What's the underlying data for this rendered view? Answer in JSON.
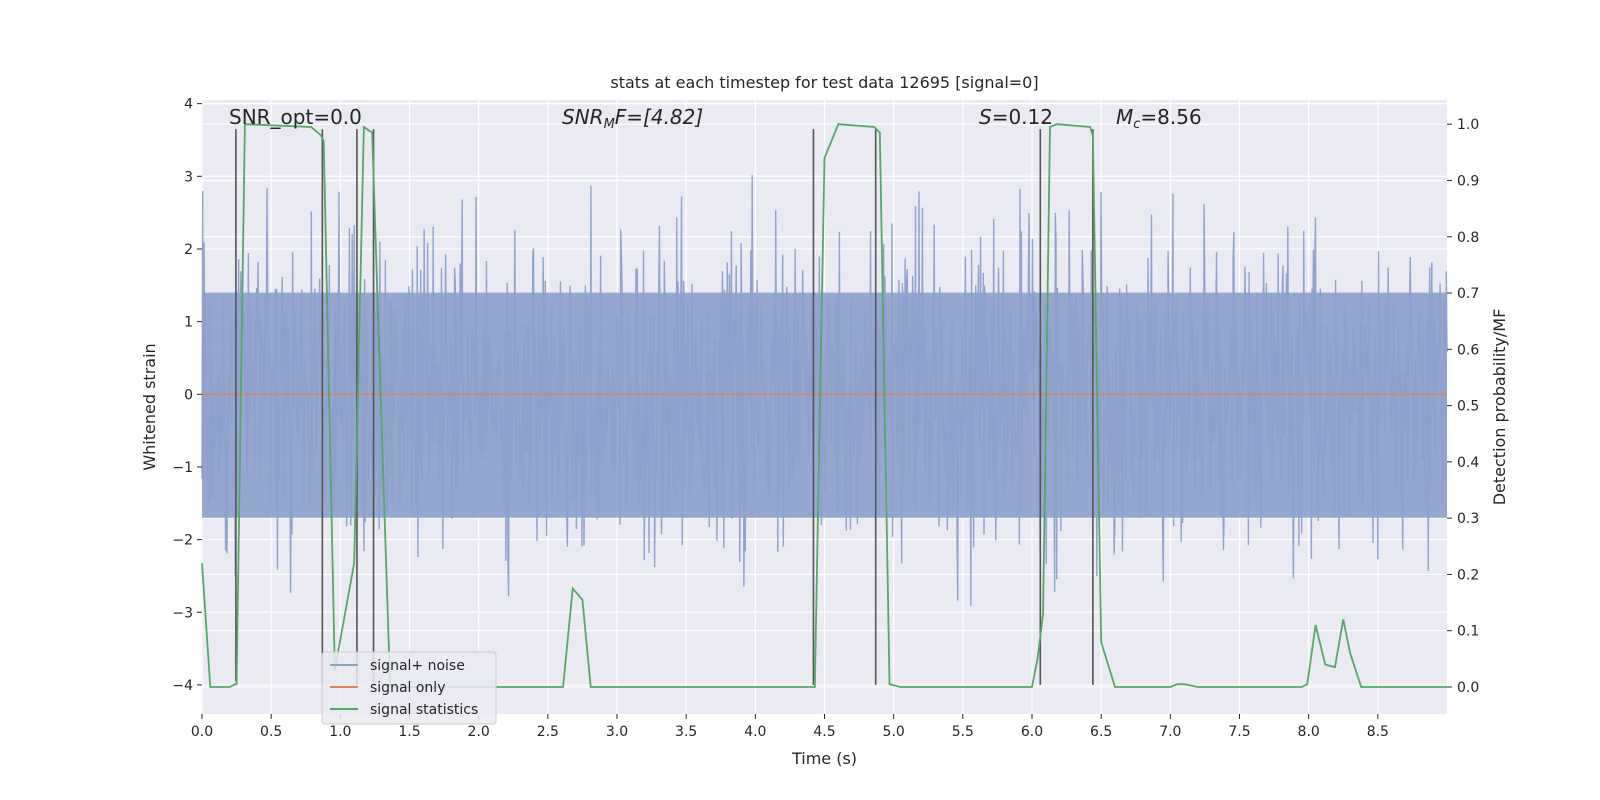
{
  "chart_data": {
    "type": "line",
    "title": "stats at each timestep for test data 12695 [signal=0]",
    "xlabel": "Time (s)",
    "ylabel": "Whitened strain",
    "y2label": "Detection probability/MF",
    "xlim": [
      0.0,
      9.0
    ],
    "ylim": [
      -4.4,
      4.05
    ],
    "y2lim": [
      -0.048,
      1.043
    ],
    "xticks": [
      0.0,
      0.5,
      1.0,
      1.5,
      2.0,
      2.5,
      3.0,
      3.5,
      4.0,
      4.5,
      5.0,
      5.5,
      6.0,
      6.5,
      7.0,
      7.5,
      8.0,
      8.5
    ],
    "xtick_labels": [
      "0.0",
      "0.5",
      "1.0",
      "1.5",
      "2.0",
      "2.5",
      "3.0",
      "3.5",
      "4.0",
      "4.5",
      "5.0",
      "5.5",
      "6.0",
      "6.5",
      "7.0",
      "7.5",
      "8.0",
      "8.5"
    ],
    "yticks": [
      4,
      3,
      2,
      1,
      0,
      -1,
      -2,
      -3,
      -4
    ],
    "ytick_labels": [
      "4",
      "3",
      "2",
      "1",
      "0",
      "−1",
      "−2",
      "−3",
      "−4"
    ],
    "y2ticks": [
      1.0,
      0.9,
      0.8,
      0.7,
      0.6,
      0.5,
      0.4,
      0.3,
      0.2,
      0.1,
      0.0
    ],
    "y2tick_labels": [
      "1.0",
      "0.9",
      "0.8",
      "0.7",
      "0.6",
      "0.5",
      "0.4",
      "0.3",
      "0.2",
      "0.1",
      "0.0"
    ],
    "annotations": {
      "snr_opt": "SNR_opt=0.0",
      "snr_mf_sym": "SNR",
      "snr_mf_sub": "M",
      "snr_mf_rest": "F=[4.82]",
      "s_sym": "S",
      "s_rest": "=0.12",
      "mc_sym": "M",
      "mc_sub": "c",
      "mc_rest": "=8.56"
    },
    "legend": [
      "signal+ noise",
      "signal only",
      "signal statistics"
    ],
    "legend_loc": "lower left",
    "colors": {
      "noise": "#8da0cb",
      "signal_only": "#dd8452",
      "statistics": "#55a868",
      "vlines": "#555555",
      "plot_bg": "#eaeaf2",
      "grid": "#ffffff"
    },
    "noise": {
      "n_samples": 1800,
      "sigma": 1.0,
      "band_low": -1.7,
      "band_high": 1.4,
      "max_abs": 3.8
    },
    "signal_only_value": 0.0,
    "statistics": {
      "x": [
        0.0,
        0.06,
        0.2,
        0.24,
        0.25,
        0.31,
        0.79,
        0.86,
        0.88,
        0.96,
        1.1,
        1.17,
        1.23,
        1.36,
        2.61,
        2.68,
        2.75,
        2.81,
        4.43,
        4.5,
        4.6,
        4.86,
        4.9,
        4.97,
        5.05,
        6.0,
        6.04,
        6.08,
        6.13,
        6.18,
        6.42,
        6.44,
        6.5,
        6.6,
        7.0,
        7.05,
        7.1,
        7.2,
        7.95,
        7.99,
        8.05,
        8.12,
        8.19,
        8.25,
        8.3,
        8.38,
        9.0
      ],
      "y": [
        0.22,
        0.0,
        0.0,
        0.005,
        0.005,
        1.0,
        0.995,
        0.98,
        0.97,
        0.03,
        0.22,
        0.995,
        0.985,
        0.0,
        0.0,
        0.175,
        0.155,
        0.0,
        0.0,
        0.94,
        1.0,
        0.995,
        0.985,
        0.005,
        0.0,
        0.0,
        0.05,
        0.13,
        0.995,
        1.0,
        0.995,
        0.98,
        0.08,
        0.0,
        0.0,
        0.005,
        0.005,
        0.0,
        0.0,
        0.005,
        0.11,
        0.04,
        0.035,
        0.12,
        0.06,
        0.0,
        0.0
      ]
    },
    "vlines": [
      {
        "x": 0.245,
        "y_top": 3.65,
        "y_bottom": -3.95
      },
      {
        "x": 0.87,
        "y_top": 3.65,
        "y_bottom": -4.0
      },
      {
        "x": 1.12,
        "y_top": 3.65,
        "y_bottom": -4.0
      },
      {
        "x": 1.24,
        "y_top": 3.65,
        "y_bottom": -4.0
      },
      {
        "x": 4.42,
        "y_top": 3.65,
        "y_bottom": -4.0
      },
      {
        "x": 4.87,
        "y_top": 3.65,
        "y_bottom": -4.0
      },
      {
        "x": 6.06,
        "y_top": 3.65,
        "y_bottom": -4.0
      },
      {
        "x": 6.44,
        "y_top": 3.65,
        "y_bottom": -4.0
      }
    ]
  }
}
